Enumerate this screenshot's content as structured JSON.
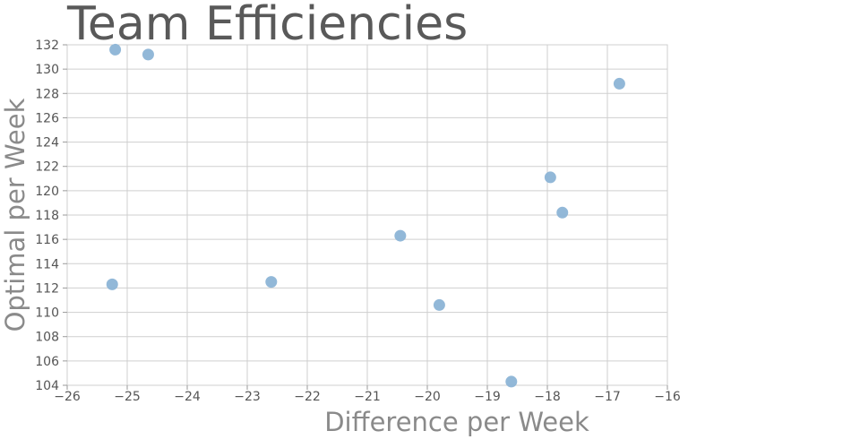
{
  "chart_data": {
    "type": "scatter",
    "title": "Team Efficiencies",
    "xlabel": "Difference per Week",
    "ylabel": "Optimal per Week",
    "xlim": [
      -26,
      -16
    ],
    "ylim": [
      104,
      132
    ],
    "xticks": [
      -26,
      -25,
      -24,
      -23,
      -22,
      -21,
      -20,
      -19,
      -18,
      -17,
      -16
    ],
    "yticks": [
      104,
      106,
      108,
      110,
      112,
      114,
      116,
      118,
      120,
      122,
      124,
      126,
      128,
      130,
      132
    ],
    "grid": true,
    "legend": "none",
    "series": [
      {
        "color": "#8cb4d6",
        "points": [
          {
            "x": -25.2,
            "y": 131.6
          },
          {
            "x": -24.65,
            "y": 131.2
          },
          {
            "x": -16.8,
            "y": 128.8
          },
          {
            "x": -17.95,
            "y": 121.1
          },
          {
            "x": -17.75,
            "y": 118.2
          },
          {
            "x": -20.45,
            "y": 116.3
          },
          {
            "x": -22.6,
            "y": 112.5
          },
          {
            "x": -25.25,
            "y": 112.3
          },
          {
            "x": -19.8,
            "y": 110.6
          },
          {
            "x": -18.6,
            "y": 104.3
          }
        ]
      }
    ]
  }
}
